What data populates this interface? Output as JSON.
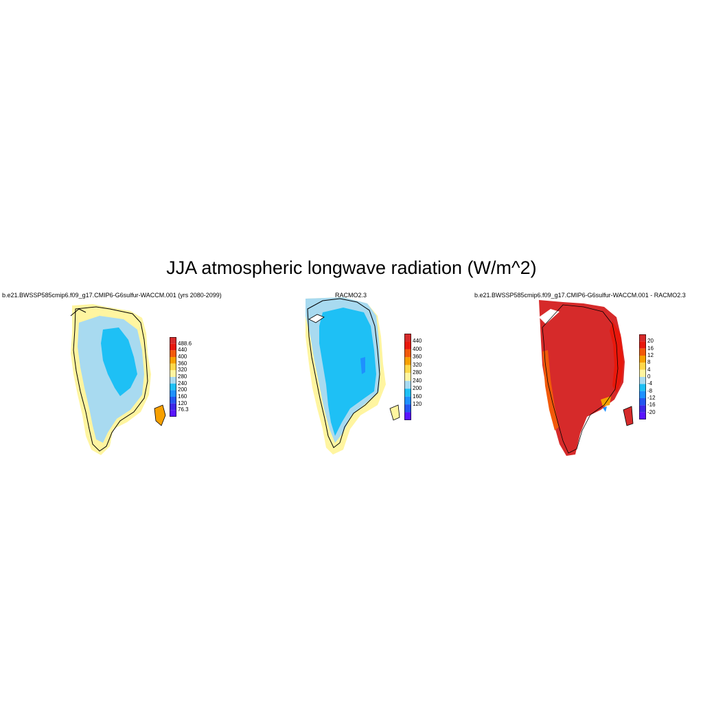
{
  "title": "JJA atmospheric longwave radiation (W/m^2)",
  "panels": [
    {
      "title": "b.e21.BWSSP585cmip6.f09_g17.CMIP6-G6sulfur-WACCM.001 (yrs 2080-2099)",
      "colorbar": {
        "labels": [
          "488.6",
          "440",
          "400",
          "360",
          "320",
          "280",
          "240",
          "200",
          "160",
          "120",
          "76.3"
        ],
        "colors": [
          "#d62a2a",
          "#e8180c",
          "#f25a0a",
          "#f7a000",
          "#ffd84a",
          "#fff5a0",
          "#a8daf0",
          "#1ec0f5",
          "#1e90ff",
          "#2456f0",
          "#3c28e6",
          "#5a14ff"
        ]
      }
    },
    {
      "title": "RACMO2.3",
      "colorbar": {
        "labels": [
          "440",
          "400",
          "360",
          "320",
          "280",
          "240",
          "200",
          "160",
          "120"
        ],
        "colors": [
          "#d62a2a",
          "#e8180c",
          "#f25a0a",
          "#f7a000",
          "#ffd84a",
          "#fff5a0",
          "#a8daf0",
          "#1ec0f5",
          "#1e90ff",
          "#2456f0",
          "#5a14ff"
        ]
      }
    },
    {
      "title": "b.e21.BWSSP585cmip6.f09_g17.CMIP6-G6sulfur-WACCM.001 - RACMO2.3",
      "colorbar": {
        "labels": [
          "20",
          "16",
          "12",
          "8",
          "4",
          "0",
          "-4",
          "-8",
          "-12",
          "-16",
          "-20"
        ],
        "colors": [
          "#d62a2a",
          "#e8180c",
          "#f25a0a",
          "#f7a000",
          "#ffd84a",
          "#fff5a0",
          "#a8daf0",
          "#1ec0f5",
          "#1e90ff",
          "#2456f0",
          "#3c28e6",
          "#5a14ff"
        ]
      }
    }
  ]
}
